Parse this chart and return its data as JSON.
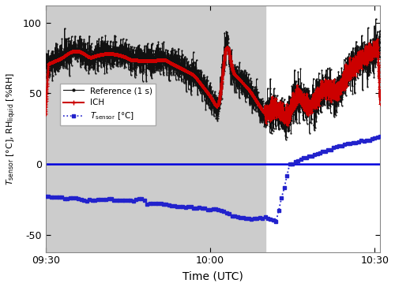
{
  "xlabel": "Time (UTC)",
  "xlim_minutes": [
    0,
    61
  ],
  "ylim": [
    -62,
    112
  ],
  "yticks": [
    -50,
    0,
    50,
    100
  ],
  "xtick_labels": [
    "09:30",
    "10:00",
    "10:30"
  ],
  "xtick_positions": [
    0,
    30,
    60
  ],
  "gray_region_start": 0,
  "gray_region_end": 40,
  "gray_color": "#cccccc",
  "zero_line_color": "#0000dd",
  "ref_color": "#111111",
  "ich_color": "#cc0000",
  "tsensor_color": "#2222cc",
  "legend_ref": "Reference (1 s)",
  "legend_ich": "ICH",
  "legend_tsensor": "$T_\\mathrm{sensor}$ [°C]"
}
